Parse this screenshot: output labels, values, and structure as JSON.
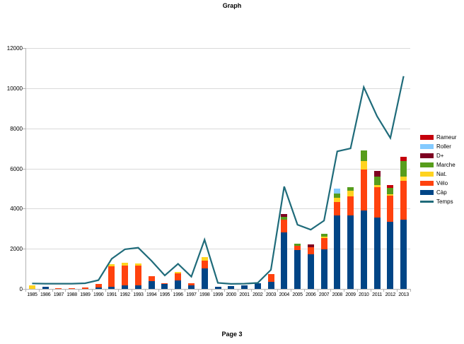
{
  "title": "Graph",
  "footer": "Page 3",
  "legend": {
    "items": [
      {
        "label": "Rameur",
        "color": "#c5000b",
        "type": "box"
      },
      {
        "label": "Roller",
        "color": "#83caff",
        "type": "box"
      },
      {
        "label": "D+",
        "color": "#7e0021",
        "type": "box"
      },
      {
        "label": "Marche",
        "color": "#579d1c",
        "type": "box"
      },
      {
        "label": "Nat.",
        "color": "#ffd320",
        "type": "box"
      },
      {
        "label": "Vélo",
        "color": "#ff420e",
        "type": "box"
      },
      {
        "label": "Càp",
        "color": "#004586",
        "type": "box"
      },
      {
        "label": "Temps",
        "color": "#1f6b7a",
        "type": "line"
      }
    ]
  },
  "chart_data": {
    "type": "bar",
    "subtype": "stacked-bar-with-line",
    "title": "Graph",
    "xlabel": "",
    "ylabel": "",
    "ylim": [
      0,
      12000
    ],
    "ytick_step": 2000,
    "grid": "horizontal",
    "legend_position": "right",
    "categories": [
      "1985",
      "1986",
      "1987",
      "1988",
      "1989",
      "1990",
      "1991",
      "1992",
      "1993",
      "1994",
      "1995",
      "1996",
      "1997",
      "1998",
      "1999",
      "2000",
      "2001",
      "2002",
      "2003",
      "2004",
      "2005",
      "2006",
      "2007",
      "2008",
      "2009",
      "2010",
      "2011",
      "2012",
      "2013"
    ],
    "series": [
      {
        "name": "Càp",
        "color": "#004586",
        "values": [
          0,
          100,
          0,
          0,
          0,
          60,
          110,
          180,
          160,
          380,
          240,
          430,
          180,
          1020,
          120,
          150,
          170,
          280,
          340,
          2800,
          1950,
          1730,
          1970,
          3650,
          3650,
          3900,
          3550,
          3350,
          3450
        ]
      },
      {
        "name": "Vélo",
        "color": "#ff420e",
        "values": [
          0,
          0,
          50,
          50,
          60,
          190,
          1030,
          990,
          1000,
          260,
          50,
          330,
          110,
          390,
          0,
          0,
          0,
          0,
          390,
          650,
          200,
          350,
          560,
          680,
          950,
          2060,
          1500,
          1300,
          1950
        ]
      },
      {
        "name": "Nat.",
        "color": "#ffd320",
        "values": [
          180,
          0,
          0,
          0,
          0,
          0,
          90,
          120,
          120,
          0,
          0,
          80,
          0,
          165,
          0,
          0,
          0,
          0,
          0,
          0,
          0,
          0,
          80,
          220,
          300,
          410,
          110,
          80,
          210
        ]
      },
      {
        "name": "Marche",
        "color": "#579d1c",
        "values": [
          0,
          0,
          0,
          0,
          0,
          0,
          0,
          0,
          0,
          0,
          0,
          0,
          0,
          0,
          0,
          0,
          0,
          0,
          0,
          130,
          110,
          0,
          120,
          200,
          180,
          530,
          450,
          290,
          760
        ]
      },
      {
        "name": "D+",
        "color": "#7e0021",
        "values": [
          0,
          0,
          0,
          0,
          0,
          0,
          0,
          0,
          0,
          0,
          0,
          0,
          0,
          0,
          0,
          0,
          0,
          0,
          0,
          150,
          0,
          140,
          0,
          0,
          0,
          0,
          260,
          0,
          0
        ]
      },
      {
        "name": "Roller",
        "color": "#83caff",
        "values": [
          0,
          0,
          0,
          0,
          0,
          0,
          0,
          0,
          0,
          0,
          0,
          0,
          0,
          0,
          0,
          0,
          0,
          0,
          0,
          0,
          0,
          0,
          0,
          240,
          0,
          0,
          0,
          0,
          0
        ]
      },
      {
        "name": "Rameur",
        "color": "#c5000b",
        "values": [
          0,
          0,
          0,
          0,
          0,
          0,
          0,
          0,
          0,
          0,
          0,
          0,
          0,
          0,
          0,
          0,
          0,
          0,
          0,
          0,
          0,
          0,
          0,
          0,
          0,
          0,
          0,
          140,
          200
        ]
      }
    ],
    "line_series": {
      "name": "Temps",
      "color": "#1f6b7a",
      "values": [
        270,
        260,
        260,
        260,
        280,
        435,
        1500,
        1975,
        2050,
        1400,
        670,
        1250,
        610,
        2450,
        300,
        250,
        260,
        300,
        950,
        5100,
        3200,
        2950,
        3400,
        6850,
        7000,
        10050,
        8600,
        7520,
        10600
      ]
    }
  }
}
